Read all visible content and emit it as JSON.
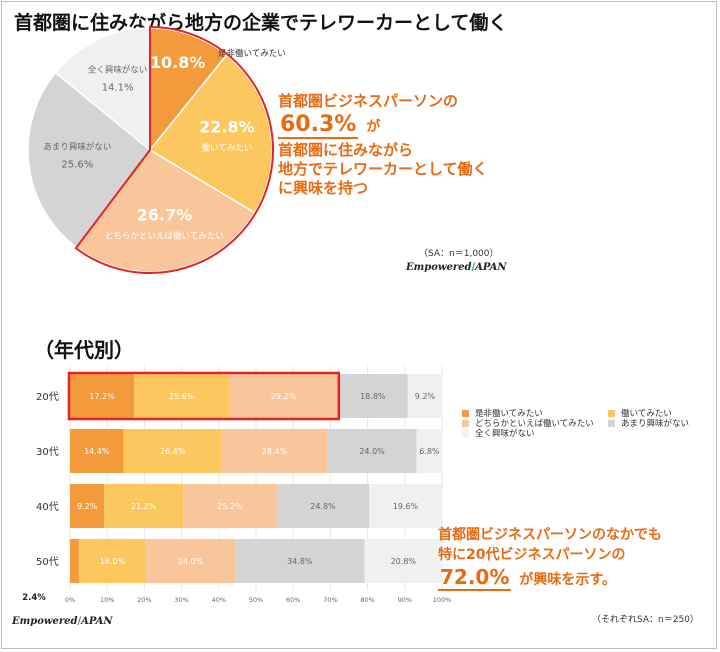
{
  "title": "首都圏に住みながら地方の企業でテレワーカーとして働く",
  "section_title": "（年代別）",
  "callout1": {
    "line1": "首都圏ビジネスパーソンの",
    "pct": "60.3%",
    "ga": "が",
    "line3": "首都圏に住みながら",
    "line4": "地方でテレワーカーとして働く",
    "line5": "に興味を持つ"
  },
  "callout2": {
    "line1": "首都圏ビジネスパーソンのなかでも",
    "line2": "特に20代ビジネスパーソンの",
    "pct": "72.0%",
    "tail": "が興味を示す。"
  },
  "sample_note_pie": "（SA：n＝1,000）",
  "sample_note_bar": "（それぞれSA：n＝250）",
  "logo": {
    "left": "Empowered",
    "slash": "/",
    "right": "APAN"
  },
  "colors": {
    "c1": "#f39a3d",
    "c2": "#fdc760",
    "c3": "#f9c59a",
    "c4": "#d4d4d4",
    "c5": "#f0f0f0",
    "highlight": "#e0242a"
  },
  "chart_data": [
    {
      "type": "pie",
      "title": "首都圏に住みながら地方の企業でテレワーカーとして働く",
      "slices": [
        {
          "label": "是非働いてみたい",
          "value": 10.8,
          "display": "10.8%"
        },
        {
          "label": "働いてみたい",
          "value": 22.8,
          "display": "22.8%"
        },
        {
          "label": "どちらかといえば働いてみたい",
          "value": 26.7,
          "display": "26.7%"
        },
        {
          "label": "あまり興味がない",
          "value": 25.6,
          "display": "25.6%"
        },
        {
          "label": "全く興味がない",
          "value": 14.1,
          "display": "14.1%"
        }
      ],
      "highlighted_slices": [
        "是非働いてみたい",
        "働いてみたい",
        "どちらかといえば働いてみたい"
      ]
    },
    {
      "type": "bar",
      "orientation": "horizontal",
      "stacked": true,
      "title": "（年代別）",
      "categories": [
        "20代",
        "30代",
        "40代",
        "50代"
      ],
      "series": [
        {
          "name": "是非働いてみたい",
          "values": [
            17.2,
            14.4,
            9.2,
            2.4
          ]
        },
        {
          "name": "働いてみたい",
          "values": [
            25.6,
            26.4,
            21.2,
            18.0
          ]
        },
        {
          "name": "どちらかといえば働いてみたい",
          "values": [
            29.2,
            28.4,
            25.2,
            24.0
          ]
        },
        {
          "name": "あまり興味がない",
          "values": [
            18.8,
            24.0,
            24.8,
            34.8
          ]
        },
        {
          "name": "全く興味がない",
          "values": [
            9.2,
            6.8,
            19.6,
            20.8
          ]
        }
      ],
      "x_ticks": [
        "0%",
        "10%",
        "20%",
        "30%",
        "40%",
        "50%",
        "60%",
        "70%",
        "80%",
        "90%",
        "100%"
      ],
      "xlim": [
        0,
        100
      ],
      "outside_label": "2.4%",
      "highlight_category": "20代",
      "legend": [
        "是非働いてみたい",
        "働いてみたい",
        "どちらかといえば働いてみたい",
        "あまり興味がない",
        "全く興味がない"
      ]
    }
  ]
}
